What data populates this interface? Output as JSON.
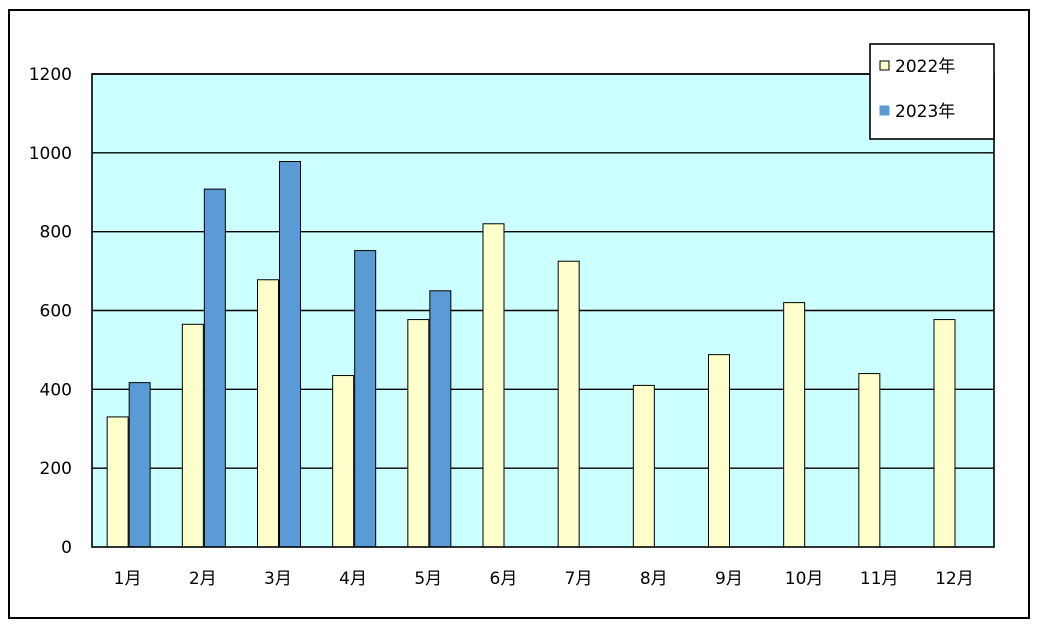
{
  "chart_data": {
    "type": "bar",
    "title": "",
    "xlabel": "",
    "ylabel": "",
    "categories": [
      "1月",
      "2月",
      "3月",
      "4月",
      "5月",
      "6月",
      "7月",
      "8月",
      "9月",
      "10月",
      "11月",
      "12月"
    ],
    "series": [
      {
        "name": "2022年",
        "values": [
          330,
          565,
          678,
          435,
          577,
          820,
          725,
          410,
          488,
          620,
          440,
          577
        ]
      },
      {
        "name": "2023年",
        "values": [
          417,
          908,
          978,
          752,
          650,
          null,
          null,
          null,
          null,
          null,
          null,
          null
        ]
      }
    ],
    "ylim": [
      0,
      1200
    ],
    "yticks": [
      "0",
      "200",
      "400",
      "600",
      "800",
      "1000",
      "1200"
    ],
    "grid": true,
    "legend_position": "top-right",
    "colors": {
      "plot_bg": "#ccffff",
      "series": [
        "#ffffcc",
        "#5b9bd5"
      ],
      "grid": "#000000",
      "border": "#000000"
    }
  }
}
